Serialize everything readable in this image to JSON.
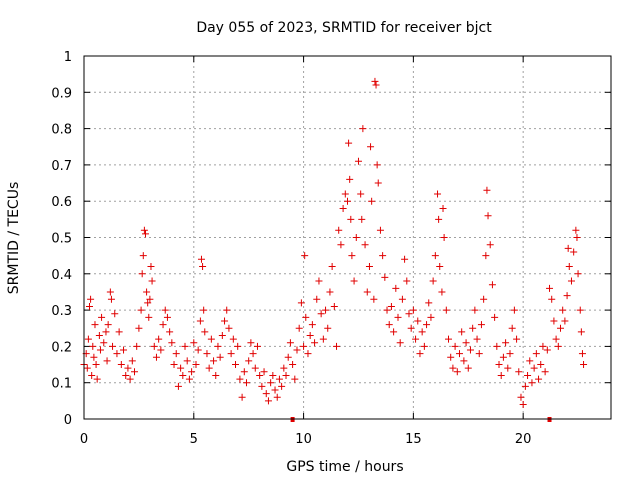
{
  "chart_data": {
    "type": "scatter",
    "title": "Day 055 of 2023, SRMTID for receiver bjct",
    "xlabel": "GPS time / hours",
    "ylabel": "SRMTID / TECUs",
    "xlim": [
      0,
      24
    ],
    "ylim": [
      0,
      1
    ],
    "xticks": [
      0,
      5,
      10,
      15,
      20
    ],
    "xtick_labels": [
      "0",
      "5",
      "10",
      "15",
      "20"
    ],
    "yticks": [
      0,
      0.1,
      0.2,
      0.3,
      0.4,
      0.5,
      0.6,
      0.7,
      0.8,
      0.9,
      1
    ],
    "ytick_labels": [
      "0",
      "0.1",
      "0.2",
      "0.3",
      "0.4",
      "0.5",
      "0.6",
      "0.7",
      "0.8",
      "0.9",
      "1"
    ],
    "grid": true,
    "marker": "+",
    "color": "#e00000",
    "series": [
      {
        "name": "SRMTID",
        "points": [
          [
            0.0,
            0.15
          ],
          [
            0.1,
            0.18
          ],
          [
            0.15,
            0.14
          ],
          [
            0.2,
            0.22
          ],
          [
            0.25,
            0.31
          ],
          [
            0.3,
            0.33
          ],
          [
            0.35,
            0.12
          ],
          [
            0.4,
            0.2
          ],
          [
            0.45,
            0.17
          ],
          [
            0.5,
            0.26
          ],
          [
            0.55,
            0.15
          ],
          [
            0.6,
            0.11
          ],
          [
            0.7,
            0.23
          ],
          [
            0.75,
            0.19
          ],
          [
            0.8,
            0.28
          ],
          [
            0.9,
            0.21
          ],
          [
            1.0,
            0.24
          ],
          [
            1.05,
            0.16
          ],
          [
            1.1,
            0.26
          ],
          [
            1.2,
            0.35
          ],
          [
            1.25,
            0.33
          ],
          [
            1.3,
            0.2
          ],
          [
            1.4,
            0.29
          ],
          [
            1.5,
            0.18
          ],
          [
            1.6,
            0.24
          ],
          [
            1.7,
            0.15
          ],
          [
            1.8,
            0.19
          ],
          [
            1.9,
            0.12
          ],
          [
            2.0,
            0.14
          ],
          [
            2.1,
            0.11
          ],
          [
            2.2,
            0.16
          ],
          [
            2.3,
            0.13
          ],
          [
            2.4,
            0.2
          ],
          [
            2.5,
            0.25
          ],
          [
            2.6,
            0.3
          ],
          [
            2.65,
            0.4
          ],
          [
            2.7,
            0.45
          ],
          [
            2.75,
            0.52
          ],
          [
            2.8,
            0.51
          ],
          [
            2.85,
            0.35
          ],
          [
            2.9,
            0.32
          ],
          [
            2.95,
            0.28
          ],
          [
            3.0,
            0.33
          ],
          [
            3.05,
            0.42
          ],
          [
            3.1,
            0.38
          ],
          [
            3.2,
            0.2
          ],
          [
            3.3,
            0.17
          ],
          [
            3.4,
            0.22
          ],
          [
            3.5,
            0.19
          ],
          [
            3.6,
            0.26
          ],
          [
            3.7,
            0.3
          ],
          [
            3.8,
            0.28
          ],
          [
            3.9,
            0.24
          ],
          [
            4.0,
            0.21
          ],
          [
            4.1,
            0.15
          ],
          [
            4.2,
            0.18
          ],
          [
            4.3,
            0.09
          ],
          [
            4.4,
            0.14
          ],
          [
            4.5,
            0.12
          ],
          [
            4.6,
            0.2
          ],
          [
            4.7,
            0.16
          ],
          [
            4.8,
            0.11
          ],
          [
            4.9,
            0.13
          ],
          [
            5.0,
            0.21
          ],
          [
            5.1,
            0.15
          ],
          [
            5.2,
            0.19
          ],
          [
            5.3,
            0.27
          ],
          [
            5.35,
            0.44
          ],
          [
            5.4,
            0.42
          ],
          [
            5.45,
            0.3
          ],
          [
            5.5,
            0.24
          ],
          [
            5.6,
            0.18
          ],
          [
            5.7,
            0.14
          ],
          [
            5.8,
            0.22
          ],
          [
            5.9,
            0.16
          ],
          [
            6.0,
            0.12
          ],
          [
            6.1,
            0.2
          ],
          [
            6.2,
            0.17
          ],
          [
            6.3,
            0.23
          ],
          [
            6.4,
            0.27
          ],
          [
            6.5,
            0.3
          ],
          [
            6.6,
            0.25
          ],
          [
            6.7,
            0.18
          ],
          [
            6.8,
            0.22
          ],
          [
            6.9,
            0.15
          ],
          [
            7.0,
            0.2
          ],
          [
            7.1,
            0.11
          ],
          [
            7.2,
            0.06
          ],
          [
            7.3,
            0.13
          ],
          [
            7.4,
            0.1
          ],
          [
            7.5,
            0.16
          ],
          [
            7.6,
            0.21
          ],
          [
            7.7,
            0.18
          ],
          [
            7.8,
            0.14
          ],
          [
            7.9,
            0.2
          ],
          [
            8.0,
            0.12
          ],
          [
            8.1,
            0.09
          ],
          [
            8.2,
            0.13
          ],
          [
            8.3,
            0.07
          ],
          [
            8.4,
            0.05
          ],
          [
            8.5,
            0.1
          ],
          [
            8.6,
            0.12
          ],
          [
            8.7,
            0.08
          ],
          [
            8.8,
            0.06
          ],
          [
            8.9,
            0.11
          ],
          [
            9.0,
            0.09
          ],
          [
            9.1,
            0.14
          ],
          [
            9.2,
            0.12
          ],
          [
            9.3,
            0.17
          ],
          [
            9.4,
            0.21
          ],
          [
            9.5,
            0.15
          ],
          [
            9.6,
            0.11
          ],
          [
            9.7,
            0.19
          ],
          [
            9.8,
            0.25
          ],
          [
            9.9,
            0.32
          ],
          [
            10.0,
            0.2
          ],
          [
            10.05,
            0.45
          ],
          [
            10.1,
            0.28
          ],
          [
            10.2,
            0.18
          ],
          [
            10.3,
            0.23
          ],
          [
            10.4,
            0.26
          ],
          [
            10.5,
            0.21
          ],
          [
            10.6,
            0.33
          ],
          [
            10.7,
            0.38
          ],
          [
            10.8,
            0.29
          ],
          [
            10.9,
            0.22
          ],
          [
            11.0,
            0.3
          ],
          [
            11.1,
            0.25
          ],
          [
            11.2,
            0.35
          ],
          [
            11.3,
            0.42
          ],
          [
            11.4,
            0.31
          ],
          [
            11.5,
            0.2
          ],
          [
            11.6,
            0.52
          ],
          [
            11.7,
            0.48
          ],
          [
            11.8,
            0.58
          ],
          [
            11.9,
            0.62
          ],
          [
            12.0,
            0.6
          ],
          [
            12.05,
            0.76
          ],
          [
            12.1,
            0.66
          ],
          [
            12.15,
            0.55
          ],
          [
            12.2,
            0.45
          ],
          [
            12.3,
            0.38
          ],
          [
            12.4,
            0.5
          ],
          [
            12.5,
            0.71
          ],
          [
            12.6,
            0.62
          ],
          [
            12.65,
            0.55
          ],
          [
            12.7,
            0.8
          ],
          [
            12.8,
            0.48
          ],
          [
            12.9,
            0.35
          ],
          [
            13.0,
            0.42
          ],
          [
            13.05,
            0.75
          ],
          [
            13.1,
            0.6
          ],
          [
            13.2,
            0.33
          ],
          [
            13.25,
            0.93
          ],
          [
            13.3,
            0.92
          ],
          [
            13.35,
            0.7
          ],
          [
            13.4,
            0.65
          ],
          [
            13.5,
            0.52
          ],
          [
            13.6,
            0.45
          ],
          [
            13.7,
            0.39
          ],
          [
            13.8,
            0.3
          ],
          [
            13.9,
            0.26
          ],
          [
            14.0,
            0.31
          ],
          [
            14.1,
            0.24
          ],
          [
            14.2,
            0.36
          ],
          [
            14.3,
            0.28
          ],
          [
            14.4,
            0.21
          ],
          [
            14.5,
            0.33
          ],
          [
            14.6,
            0.44
          ],
          [
            14.7,
            0.38
          ],
          [
            14.8,
            0.29
          ],
          [
            14.9,
            0.25
          ],
          [
            15.0,
            0.3
          ],
          [
            15.1,
            0.22
          ],
          [
            15.2,
            0.27
          ],
          [
            15.3,
            0.18
          ],
          [
            15.4,
            0.24
          ],
          [
            15.5,
            0.2
          ],
          [
            15.6,
            0.26
          ],
          [
            15.7,
            0.32
          ],
          [
            15.8,
            0.28
          ],
          [
            15.9,
            0.38
          ],
          [
            16.0,
            0.45
          ],
          [
            16.1,
            0.62
          ],
          [
            16.15,
            0.55
          ],
          [
            16.2,
            0.42
          ],
          [
            16.3,
            0.35
          ],
          [
            16.35,
            0.58
          ],
          [
            16.4,
            0.5
          ],
          [
            16.5,
            0.3
          ],
          [
            16.6,
            0.22
          ],
          [
            16.7,
            0.17
          ],
          [
            16.8,
            0.14
          ],
          [
            16.9,
            0.2
          ],
          [
            17.0,
            0.13
          ],
          [
            17.1,
            0.18
          ],
          [
            17.2,
            0.24
          ],
          [
            17.3,
            0.16
          ],
          [
            17.4,
            0.21
          ],
          [
            17.5,
            0.14
          ],
          [
            17.6,
            0.19
          ],
          [
            17.7,
            0.25
          ],
          [
            17.8,
            0.3
          ],
          [
            17.9,
            0.22
          ],
          [
            18.0,
            0.18
          ],
          [
            18.1,
            0.26
          ],
          [
            18.2,
            0.33
          ],
          [
            18.3,
            0.45
          ],
          [
            18.35,
            0.63
          ],
          [
            18.4,
            0.56
          ],
          [
            18.5,
            0.48
          ],
          [
            18.6,
            0.37
          ],
          [
            18.7,
            0.28
          ],
          [
            18.8,
            0.2
          ],
          [
            18.9,
            0.15
          ],
          [
            19.0,
            0.12
          ],
          [
            19.1,
            0.17
          ],
          [
            19.2,
            0.21
          ],
          [
            19.3,
            0.14
          ],
          [
            19.4,
            0.18
          ],
          [
            19.5,
            0.25
          ],
          [
            19.6,
            0.3
          ],
          [
            19.7,
            0.22
          ],
          [
            19.8,
            0.13
          ],
          [
            19.9,
            0.06
          ],
          [
            20.0,
            0.04
          ],
          [
            20.1,
            0.09
          ],
          [
            20.2,
            0.12
          ],
          [
            20.3,
            0.16
          ],
          [
            20.4,
            0.1
          ],
          [
            20.5,
            0.14
          ],
          [
            20.6,
            0.18
          ],
          [
            20.7,
            0.11
          ],
          [
            20.8,
            0.15
          ],
          [
            20.9,
            0.2
          ],
          [
            21.0,
            0.13
          ],
          [
            21.1,
            0.19
          ],
          [
            21.2,
            0.36
          ],
          [
            21.3,
            0.33
          ],
          [
            21.4,
            0.27
          ],
          [
            21.5,
            0.22
          ],
          [
            21.6,
            0.2
          ],
          [
            21.7,
            0.25
          ],
          [
            21.8,
            0.3
          ],
          [
            21.9,
            0.27
          ],
          [
            22.0,
            0.34
          ],
          [
            22.05,
            0.47
          ],
          [
            22.1,
            0.42
          ],
          [
            22.2,
            0.38
          ],
          [
            22.3,
            0.46
          ],
          [
            22.4,
            0.52
          ],
          [
            22.45,
            0.5
          ],
          [
            22.5,
            0.4
          ],
          [
            22.6,
            0.3
          ],
          [
            22.65,
            0.24
          ],
          [
            22.7,
            0.18
          ],
          [
            22.75,
            0.15
          ]
        ]
      }
    ],
    "xaxis_marks": [
      9.5,
      21.2
    ]
  }
}
